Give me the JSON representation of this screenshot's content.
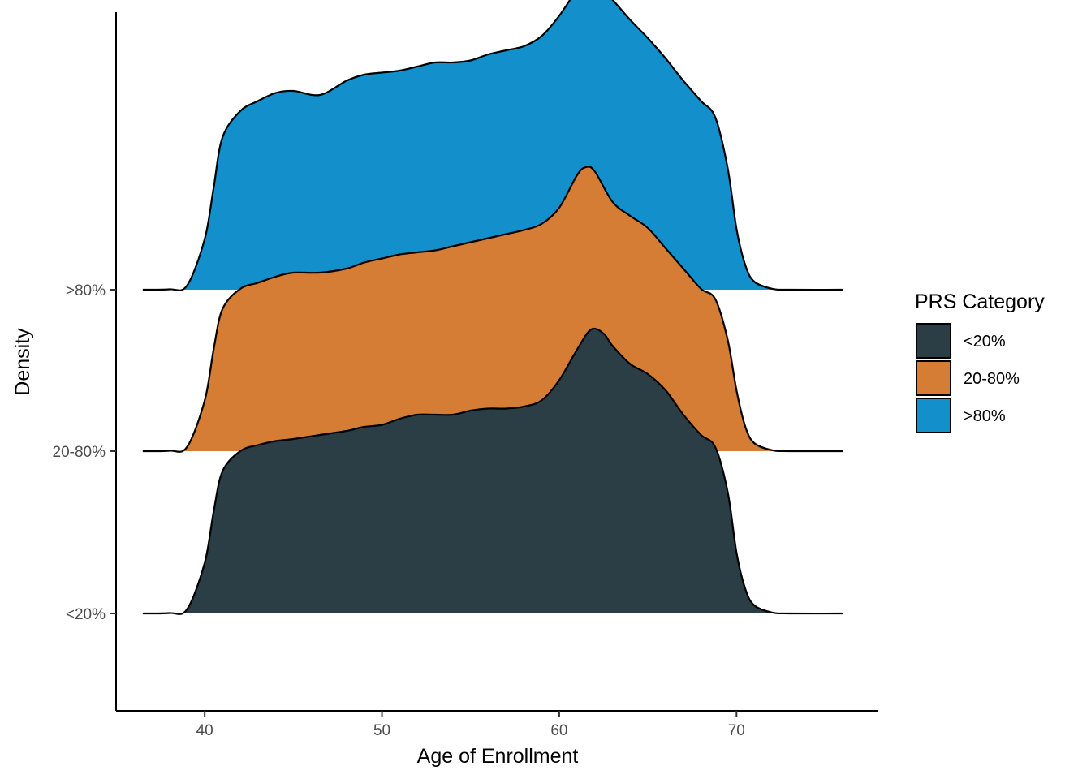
{
  "chart_data": {
    "type": "ridgeline",
    "xlabel": "Age of Enrollment",
    "ylabel": "Density",
    "xlim": [
      35,
      78
    ],
    "x_ticks": [
      40,
      50,
      60,
      70
    ],
    "categories": [
      ">80%",
      "20-80%",
      "<20%"
    ],
    "legend": {
      "title": "PRS Category",
      "position": "right",
      "entries": [
        {
          "label": "<20%",
          "color": "#2C3E45"
        },
        {
          "label": "20-80%",
          "color": "#D57D35"
        },
        {
          "label": ">80%",
          "color": "#1390CB"
        }
      ]
    },
    "grid": false,
    "series": [
      {
        "name": "<20%",
        "color": "#2C3E45",
        "x": [
          36.5,
          38.0,
          39.0,
          40.0,
          40.5,
          41.0,
          42.0,
          43.0,
          44.0,
          45.0,
          46.5,
          48.0,
          49.0,
          50.0,
          51.0,
          52.0,
          53.0,
          54.0,
          55.0,
          56.0,
          57.0,
          58.0,
          59.0,
          60.0,
          61.0,
          61.8,
          62.5,
          63.0,
          64.0,
          65.0,
          66.0,
          67.0,
          68.0,
          68.8,
          69.5,
          70.0,
          70.5,
          71.0,
          72.0,
          73.0,
          76.0
        ],
        "density": [
          0.0,
          0.002,
          0.02,
          0.25,
          0.5,
          0.7,
          0.8,
          0.83,
          0.85,
          0.86,
          0.88,
          0.9,
          0.92,
          0.93,
          0.96,
          0.98,
          0.98,
          0.98,
          1.0,
          1.01,
          1.01,
          1.02,
          1.05,
          1.15,
          1.3,
          1.4,
          1.38,
          1.32,
          1.23,
          1.18,
          1.1,
          0.98,
          0.88,
          0.82,
          0.6,
          0.3,
          0.12,
          0.04,
          0.005,
          0.0,
          0.0
        ]
      },
      {
        "name": "20-80%",
        "color": "#D57D35",
        "x": [
          36.5,
          38.0,
          39.0,
          40.0,
          40.5,
          41.0,
          42.0,
          43.0,
          44.0,
          45.0,
          46.5,
          48.0,
          49.0,
          50.0,
          51.0,
          52.0,
          53.0,
          54.0,
          55.0,
          56.0,
          57.0,
          58.0,
          59.0,
          60.0,
          61.0,
          61.5,
          62.0,
          63.0,
          64.0,
          65.0,
          66.0,
          67.0,
          68.0,
          68.8,
          69.5,
          70.0,
          70.5,
          71.0,
          72.0,
          73.0,
          76.0
        ],
        "density": [
          0.0,
          0.002,
          0.02,
          0.25,
          0.5,
          0.7,
          0.8,
          0.83,
          0.86,
          0.88,
          0.88,
          0.9,
          0.93,
          0.95,
          0.97,
          0.98,
          0.99,
          1.01,
          1.03,
          1.05,
          1.07,
          1.09,
          1.12,
          1.2,
          1.36,
          1.4,
          1.38,
          1.23,
          1.16,
          1.1,
          1.0,
          0.9,
          0.8,
          0.75,
          0.55,
          0.3,
          0.12,
          0.04,
          0.005,
          0.0,
          0.0
        ]
      },
      {
        "name": ">80%",
        "color": "#1390CB",
        "x": [
          36.5,
          38.0,
          39.0,
          40.0,
          40.5,
          41.0,
          42.0,
          43.0,
          44.0,
          45.0,
          46.5,
          48.0,
          49.0,
          50.0,
          51.0,
          52.0,
          53.0,
          54.0,
          55.0,
          56.0,
          57.0,
          58.0,
          59.0,
          60.0,
          61.0,
          61.5,
          62.0,
          63.0,
          64.0,
          65.0,
          66.0,
          67.0,
          68.0,
          68.8,
          69.5,
          70.0,
          70.5,
          71.0,
          72.0,
          73.0,
          76.0
        ],
        "density": [
          0.0,
          0.002,
          0.02,
          0.25,
          0.5,
          0.75,
          0.88,
          0.93,
          0.97,
          0.98,
          0.96,
          1.03,
          1.06,
          1.07,
          1.08,
          1.1,
          1.12,
          1.12,
          1.13,
          1.16,
          1.18,
          1.2,
          1.25,
          1.35,
          1.48,
          1.53,
          1.52,
          1.43,
          1.33,
          1.24,
          1.14,
          1.03,
          0.93,
          0.85,
          0.6,
          0.3,
          0.12,
          0.04,
          0.005,
          0.0,
          0.0
        ]
      }
    ]
  }
}
